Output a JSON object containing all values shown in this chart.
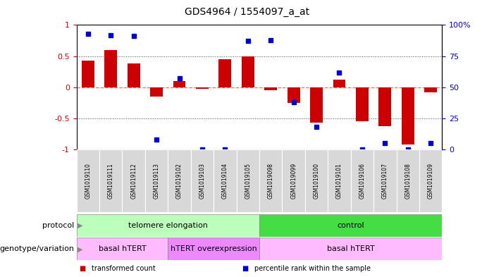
{
  "title": "GDS4964 / 1554097_a_at",
  "samples": [
    "GSM1019110",
    "GSM1019111",
    "GSM1019112",
    "GSM1019113",
    "GSM1019102",
    "GSM1019103",
    "GSM1019104",
    "GSM1019105",
    "GSM1019098",
    "GSM1019099",
    "GSM1019100",
    "GSM1019101",
    "GSM1019106",
    "GSM1019107",
    "GSM1019108",
    "GSM1019109"
  ],
  "transformed_count": [
    0.43,
    0.6,
    0.38,
    -0.15,
    0.1,
    -0.02,
    0.45,
    0.5,
    -0.05,
    -0.25,
    -0.57,
    0.12,
    -0.55,
    -0.62,
    -0.92,
    -0.08
  ],
  "percentile_rank": [
    93,
    92,
    91,
    8,
    57,
    0,
    0,
    87,
    88,
    38,
    18,
    62,
    0,
    5,
    0,
    5
  ],
  "bar_color": "#cc0000",
  "dot_color": "#0000cc",
  "ylim": [
    -1,
    1
  ],
  "yticks_left": [
    -1,
    -0.5,
    0,
    0.5,
    1
  ],
  "ytick_labels_left": [
    "-1",
    "-0.5",
    "0",
    "0.5",
    "1"
  ],
  "yticks_right": [
    0,
    25,
    50,
    75,
    100
  ],
  "ytick_labels_right": [
    "0",
    "25",
    "50",
    "75",
    "100%"
  ],
  "hline_zero_color": "#ff6666",
  "hline_dotted_color": "#444444",
  "protocol_groups": [
    {
      "label": "telomere elongation",
      "start": 0,
      "end": 8,
      "color": "#bbffbb"
    },
    {
      "label": "control",
      "start": 8,
      "end": 16,
      "color": "#44dd44"
    }
  ],
  "genotype_groups": [
    {
      "label": "basal hTERT",
      "start": 0,
      "end": 4,
      "color": "#ffbbff"
    },
    {
      "label": "hTERT overexpression",
      "start": 4,
      "end": 8,
      "color": "#ee88ff"
    },
    {
      "label": "basal hTERT",
      "start": 8,
      "end": 16,
      "color": "#ffbbff"
    }
  ],
  "legend_items": [
    {
      "color": "#cc0000",
      "label": "transformed count"
    },
    {
      "color": "#0000cc",
      "label": "percentile rank within the sample"
    }
  ],
  "protocol_label": "protocol",
  "genotype_label": "genotype/variation",
  "background_color": "#ffffff",
  "plot_bg_color": "#ffffff",
  "bar_width": 0.55
}
